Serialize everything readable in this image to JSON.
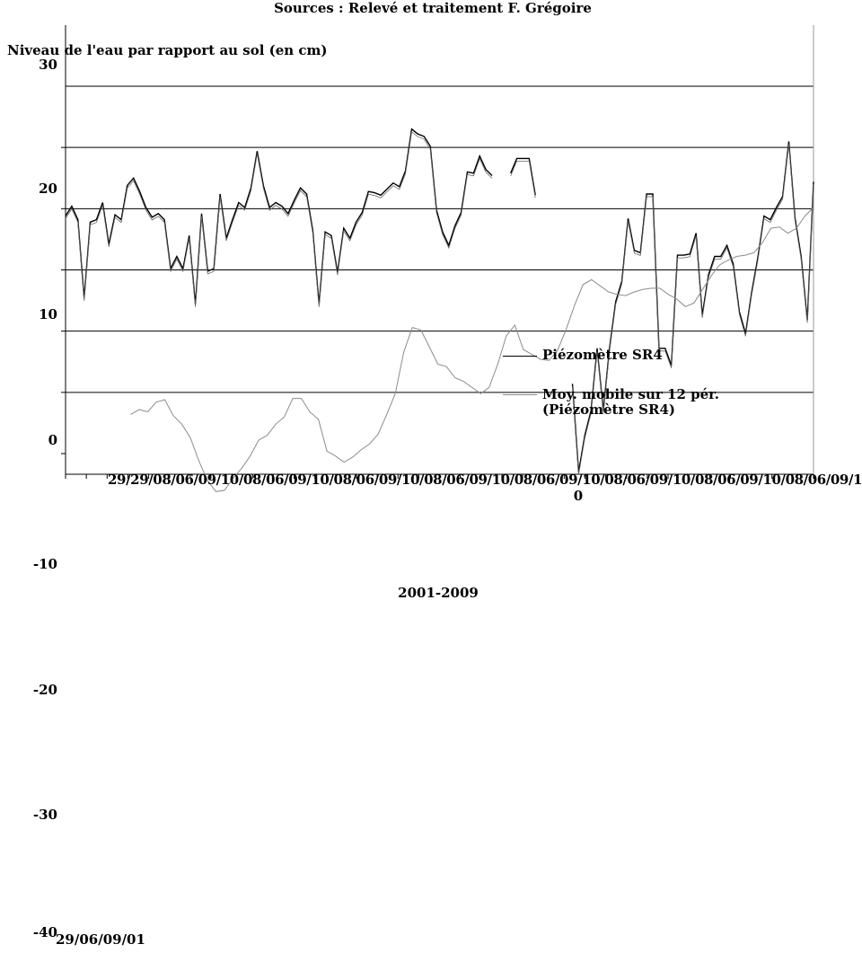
{
  "chart_data": {
    "type": "line",
    "title": "Sources : Relevé et traitement F. Grégoire",
    "ylabel": "Niveau de l'eau par rapport au sol (en cm)",
    "xlabel": "2001-2009",
    "ylim": [
      -40,
      30
    ],
    "y_ticks": [
      "30",
      "20",
      "10",
      "0",
      "-10",
      "-20",
      "-30",
      "-40"
    ],
    "x_tick_text": "29/29/08/06/09/10/08/06/09/10/08/06/09/10/08/06/09/10/08/06/09/10/08/06/09/10/08/06/09/10/08/06/09/10/08",
    "x_tick_extra": "0",
    "x_bottom_text": "29/06/09/01",
    "legend_placement": "right",
    "grid": true,
    "series": [
      {
        "name": "Piézomètre SR4",
        "color": "#000000",
        "values": [
          19.4,
          20.2,
          19.1,
          12.7,
          18.9,
          19.1,
          20.5,
          17.1,
          19.5,
          19.1,
          21.9,
          22.5,
          21.4,
          20.1,
          19.3,
          19.6,
          19.1,
          15.1,
          16.1,
          15.1,
          17.8,
          12.2,
          19.6,
          14.9,
          15.1,
          21.2,
          17.6,
          19.1,
          20.5,
          20.1,
          21.7,
          24.7,
          21.9,
          20.1,
          20.5,
          20.2,
          19.6,
          20.7,
          21.7,
          21.2,
          18.2,
          12.2,
          18.1,
          17.8,
          14.8,
          18.4,
          17.6,
          18.9,
          19.7,
          21.4,
          21.3,
          21.1,
          21.6,
          22.1,
          21.8,
          23.1,
          26.5,
          26.1,
          25.9,
          25.1,
          19.9,
          18.1,
          17.0,
          18.6,
          19.7,
          23.0,
          22.9,
          24.3,
          23.2,
          22.7,
          null,
          null,
          22.9,
          24.1,
          24.1,
          24.1,
          21.1,
          null,
          null,
          null,
          null,
          null,
          5.7,
          -1.5,
          1.5,
          3.5,
          8.6,
          3.5,
          8.6,
          12.4,
          14.1,
          19.2,
          16.6,
          16.4,
          21.2,
          21.2,
          8.6,
          8.6,
          7.2,
          16.2,
          16.2,
          16.3,
          18.0,
          11.3,
          14.6,
          16.1,
          16.1,
          17.0,
          15.5,
          11.6,
          9.8,
          13.2,
          16.0,
          19.4,
          19.1,
          20.1,
          21.0,
          25.5,
          19.3,
          16.1,
          10.9,
          22.2
        ],
        "x_start": 0.0,
        "x_end": 1.0
      },
      {
        "name": "Moy. mobile sur 12 pér. (Piézomètre SR4)",
        "color": "#8c8c8c",
        "values": [
          3.2,
          3.6,
          3.4,
          4.2,
          4.4,
          3.1,
          2.4,
          1.3,
          -0.6,
          -2.2,
          -3.1,
          -3.0,
          -2.0,
          -1.2,
          -0.2,
          1.1,
          1.5,
          2.4,
          3.0,
          4.5,
          4.5,
          3.4,
          2.8,
          0.2,
          -0.2,
          -0.7,
          -0.3,
          0.3,
          0.8,
          1.6,
          3.2,
          4.9,
          8.3,
          10.3,
          10.1,
          8.7,
          7.3,
          7.1,
          6.2,
          5.9,
          5.4,
          4.9,
          5.4,
          7.3,
          9.6,
          10.5,
          8.5,
          8.1,
          7.7,
          7.6,
          8.4,
          10.1,
          12.1,
          13.8,
          14.2,
          13.7,
          13.2,
          13.0,
          12.9,
          13.2,
          13.4,
          13.5,
          13.5,
          13.0,
          12.6,
          12.0,
          12.3,
          13.4,
          14.5,
          15.4,
          15.8,
          16.1,
          16.2,
          16.4,
          17.2,
          18.4,
          18.5,
          18.0,
          18.4,
          19.4,
          20.1
        ],
        "x_start": 0.087,
        "x_end": 1.0
      }
    ]
  }
}
